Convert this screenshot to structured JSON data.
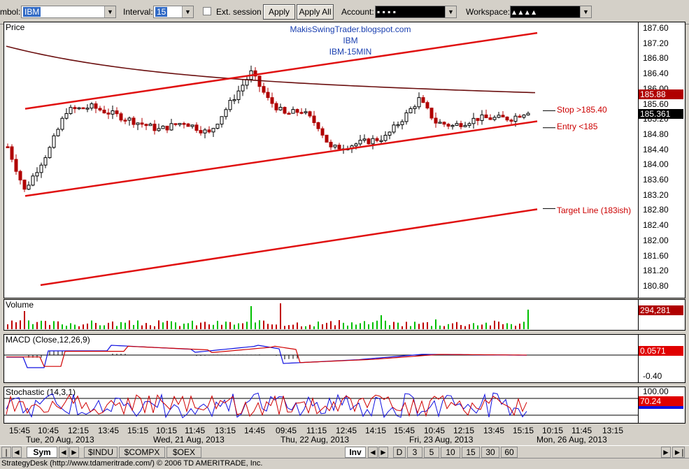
{
  "toolbar": {
    "symbol_label": "mbol:",
    "symbol_value": "IBM",
    "interval_label": "Interval:",
    "interval_value": "15",
    "ext_session_label": "Ext. session",
    "apply_label": "Apply",
    "apply_all_label": "Apply All",
    "account_label": "Account:",
    "account_value": "▪   ▪   ▪   ▪",
    "workspace_label": "Workspace:",
    "workspace_value": "▴   ▴   ▴   ▴"
  },
  "chart": {
    "watermark": [
      "MakisSwingTrader.blogspot.com",
      "IBM",
      "IBM-15MIN"
    ],
    "price_title": "Price",
    "volume_title": "Volume",
    "macd_title": "MACD (Close,12,26,9)",
    "stoch_title": "Stochastic (14,3,1)",
    "annotations": {
      "stop": "Stop >185.40",
      "entry": "Entry <185",
      "target": "Target Line (183ish)"
    },
    "price_ticks": [
      "187.60",
      "187.20",
      "186.80",
      "186.40",
      "186.00",
      "185.60",
      "185.20",
      "184.80",
      "184.40",
      "184.00",
      "183.60",
      "183.20",
      "182.80",
      "182.40",
      "182.00",
      "181.60",
      "181.20",
      "180.80"
    ],
    "price_tags": [
      {
        "text": "185.88",
        "bg": "#b00000",
        "fg": "#ffffff"
      },
      {
        "text": "185.361",
        "bg": "#000000",
        "fg": "#ffffff"
      }
    ],
    "volume_tag": "294,281",
    "macd_tag": "0.0571",
    "macd_tick": "-0.40",
    "stoch_tick": "100.00",
    "stoch_tag": "70.24",
    "time_labels": [
      "15:45",
      "10:45",
      "12:15",
      "13:45",
      "15:15",
      "10:15",
      "11:45",
      "13:15",
      "14:45",
      "09:45",
      "11:15",
      "12:45",
      "14:15",
      "15:45",
      "10:45",
      "12:15",
      "13:45",
      "15:15",
      "10:15",
      "11:45",
      "13:15"
    ],
    "date_labels": [
      "Tue, 20 Aug, 2013",
      "Wed, 21 Aug, 2013",
      "Thu, 22 Aug, 2013",
      "Fri, 23 Aug, 2013",
      "Mon, 26 Aug, 2013"
    ],
    "colors": {
      "up": "#000000",
      "down": "#b00000",
      "trend": "#e01010",
      "ma": "#6b0f0f",
      "vol_up": "#00c000",
      "vol_down": "#c00000",
      "blue": "#1010e0",
      "red": "#d00000"
    }
  },
  "tabs": {
    "sym": "Sym",
    "indu": "$INDU",
    "compx": "$COMPX",
    "oex": "$OEX",
    "inv": "Inv",
    "intervals": [
      "D",
      "3",
      "5",
      "10",
      "15",
      "30",
      "60"
    ],
    "nav": {
      "prev": "◄",
      "next": "►",
      "first": "|◄",
      "last": "►|"
    }
  },
  "status_text": "StrategyDesk (http://www.tdameritrade.com/) © 2006 TD AMERITRADE, Inc."
}
